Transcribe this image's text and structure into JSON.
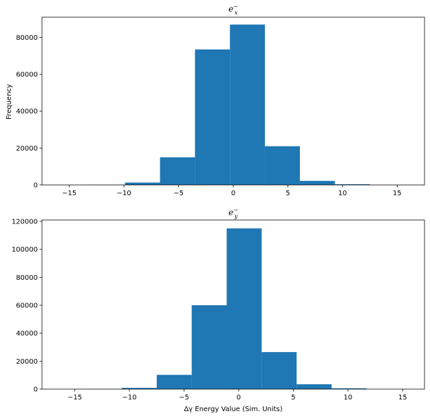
{
  "chart_data": [
    {
      "type": "bar",
      "title": {
        "base": "e",
        "sub": "x",
        "sup": "−"
      },
      "ylabel": "Frequency",
      "xlabel": "",
      "xlim": [
        -17.5,
        17.5
      ],
      "ylim": [
        0,
        91000
      ],
      "xticks": [
        -15,
        -10,
        -5,
        0,
        5,
        10,
        15
      ],
      "xtick_labels": [
        "−15",
        "−10",
        "−5",
        "0",
        "5",
        "10",
        "15"
      ],
      "yticks": [
        0,
        20000,
        40000,
        60000,
        80000
      ],
      "ytick_labels": [
        "0",
        "20000",
        "40000",
        "60000",
        "80000"
      ],
      "bins": [
        {
          "x0": -16.3,
          "x1": -13.1,
          "value": 0
        },
        {
          "x0": -13.1,
          "x1": -9.9,
          "value": 100
        },
        {
          "x0": -9.9,
          "x1": -6.7,
          "value": 1300
        },
        {
          "x0": -6.7,
          "x1": -3.5,
          "value": 15000
        },
        {
          "x0": -3.5,
          "x1": -0.3,
          "value": 73500
        },
        {
          "x0": -0.3,
          "x1": 2.9,
          "value": 87000
        },
        {
          "x0": 2.9,
          "x1": 6.1,
          "value": 21000
        },
        {
          "x0": 6.1,
          "x1": 9.3,
          "value": 2200
        },
        {
          "x0": 9.3,
          "x1": 12.5,
          "value": 400
        },
        {
          "x0": 12.5,
          "x1": 15.7,
          "value": 0
        }
      ],
      "color": "#1f77b4",
      "grid": false
    },
    {
      "type": "bar",
      "title": {
        "base": "e",
        "sub": "y",
        "sup": "−"
      },
      "ylabel": "",
      "xlabel": "Δγ Energy Value (Sim. Units)",
      "xlim": [
        -18.0,
        17.0
      ],
      "ylim": [
        0,
        121000
      ],
      "xticks": [
        -15,
        -10,
        -5,
        0,
        5,
        10,
        15
      ],
      "xtick_labels": [
        "−15",
        "−10",
        "−5",
        "0",
        "5",
        "10",
        "15"
      ],
      "yticks": [
        0,
        20000,
        40000,
        60000,
        80000,
        100000,
        120000
      ],
      "ytick_labels": [
        "0",
        "20000",
        "40000",
        "60000",
        "80000",
        "100000",
        "120000"
      ],
      "bins": [
        {
          "x0": -17.1,
          "x1": -13.9,
          "value": 0
        },
        {
          "x0": -13.9,
          "x1": -10.7,
          "value": 100
        },
        {
          "x0": -10.7,
          "x1": -7.5,
          "value": 900
        },
        {
          "x0": -7.5,
          "x1": -4.3,
          "value": 10200
        },
        {
          "x0": -4.3,
          "x1": -1.1,
          "value": 60000
        },
        {
          "x0": -1.1,
          "x1": 2.1,
          "value": 115000
        },
        {
          "x0": 2.1,
          "x1": 5.3,
          "value": 26500
        },
        {
          "x0": 5.3,
          "x1": 8.5,
          "value": 3500
        },
        {
          "x0": 8.5,
          "x1": 11.7,
          "value": 600
        },
        {
          "x0": 11.7,
          "x1": 14.9,
          "value": 0
        }
      ],
      "color": "#1f77b4",
      "grid": false
    }
  ]
}
